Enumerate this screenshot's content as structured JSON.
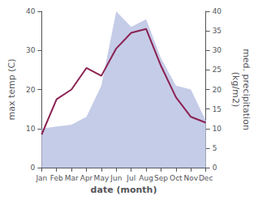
{
  "chart_data": {
    "type": "line",
    "categories": [
      "Jan",
      "Feb",
      "Mar",
      "Apr",
      "May",
      "Jun",
      "Jul",
      "Aug",
      "Sep",
      "Oct",
      "Nov",
      "Dec"
    ],
    "series": [
      {
        "type": "area",
        "color": "#c5cce8",
        "axis": "y2",
        "values": [
          10.0,
          10.5,
          11.0,
          13.0,
          21.0,
          40.0,
          36.0,
          38.0,
          28.0,
          21.0,
          20.0,
          12.0
        ]
      },
      {
        "type": "line",
        "color": "#8B2252",
        "values": [
          8.5,
          17.5,
          20.0,
          25.5,
          23.5,
          30.5,
          34.5,
          35.5,
          26.0,
          18.0,
          13.0,
          11.5
        ]
      }
    ],
    "xlabel": "date (month)",
    "ylabel": "max temp (C)",
    "y2label": "med. precipitation\n(kg/m2)",
    "ylim": [
      0,
      40
    ],
    "yticks": [
      0,
      10,
      20,
      30,
      40
    ],
    "y2lim": [
      0,
      40
    ],
    "y2ticks": [
      0,
      5,
      10,
      15,
      20,
      25,
      30,
      35,
      40
    ],
    "grid": false
  }
}
